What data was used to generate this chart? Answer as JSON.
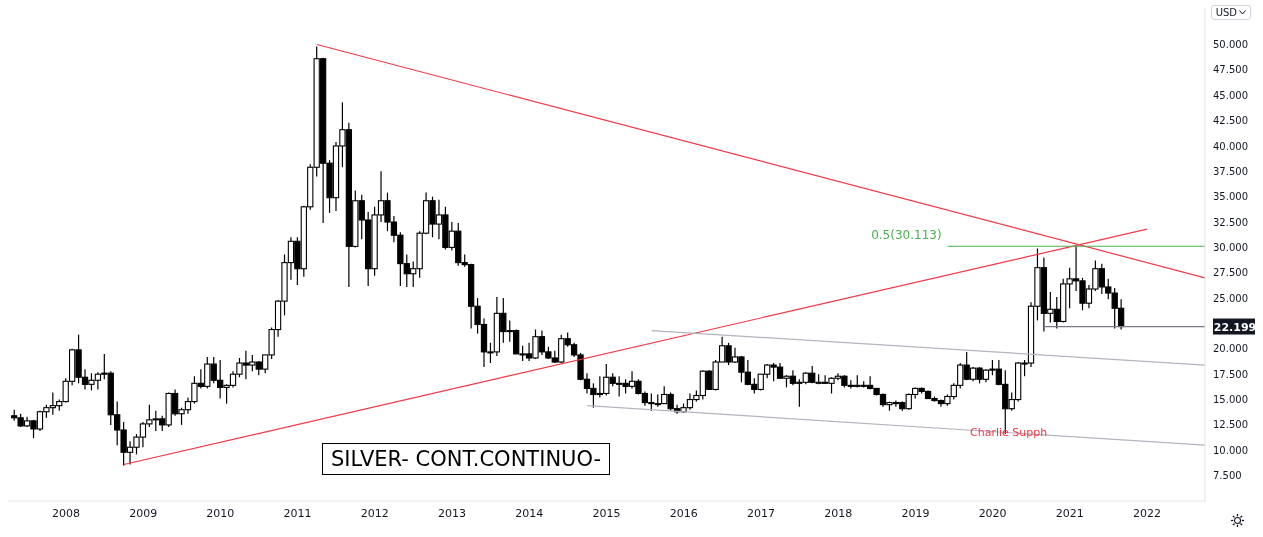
{
  "chart_data": {
    "type": "candlestick",
    "title": "SILVER- CONT.CONTINUO-",
    "xlim": [
      "2007-04",
      "2022-10"
    ],
    "xticks": [
      "2008",
      "2009",
      "2010",
      "2011",
      "2012",
      "2013",
      "2014",
      "2015",
      "2016",
      "2017",
      "2018",
      "2019",
      "2020",
      "2021",
      "2022"
    ],
    "ylim": [
      5.0,
      53.6
    ],
    "yticks": [
      {
        "value": 7.5,
        "label": "7.500"
      },
      {
        "value": 10,
        "label": "10.000"
      },
      {
        "value": 12.5,
        "label": "12.500"
      },
      {
        "value": 15,
        "label": "15.000"
      },
      {
        "value": 17.5,
        "label": "17.500"
      },
      {
        "value": 20,
        "label": "20.000"
      },
      {
        "value": 25,
        "label": "25.000"
      },
      {
        "value": 27.5,
        "label": "27.500"
      },
      {
        "value": 30,
        "label": "30.000"
      },
      {
        "value": 32.5,
        "label": "32.500"
      },
      {
        "value": 35,
        "label": "35.000"
      },
      {
        "value": 37.5,
        "label": "37.500"
      },
      {
        "value": 40,
        "label": "40.000"
      },
      {
        "value": 42.5,
        "label": "42.500"
      },
      {
        "value": 45,
        "label": "45.000"
      },
      {
        "value": 47.5,
        "label": "47.500"
      },
      {
        "value": 50,
        "label": "50.000"
      }
    ],
    "series": [
      {
        "color": "#000000",
        "x": [
          "2007-05",
          "2007-06",
          "2007-07",
          "2007-08",
          "2007-09",
          "2007-10",
          "2007-11",
          "2007-12",
          "2008-01",
          "2008-02",
          "2008-03",
          "2008-04",
          "2008-05",
          "2008-06",
          "2008-07",
          "2008-08",
          "2008-09",
          "2008-10",
          "2008-11",
          "2008-12",
          "2009-01",
          "2009-02",
          "2009-03",
          "2009-04",
          "2009-05",
          "2009-06",
          "2009-07",
          "2009-08",
          "2009-09",
          "2009-10",
          "2009-11",
          "2009-12",
          "2010-01",
          "2010-02",
          "2010-03",
          "2010-04",
          "2010-05",
          "2010-06",
          "2010-07",
          "2010-08",
          "2010-09",
          "2010-10",
          "2010-11",
          "2010-12",
          "2011-01",
          "2011-02",
          "2011-03",
          "2011-04",
          "2011-05",
          "2011-06",
          "2011-07",
          "2011-08",
          "2011-09",
          "2011-10",
          "2011-11",
          "2011-12",
          "2012-01",
          "2012-02",
          "2012-03",
          "2012-04",
          "2012-05",
          "2012-06",
          "2012-07",
          "2012-08",
          "2012-09",
          "2012-10",
          "2012-11",
          "2012-12",
          "2013-01",
          "2013-02",
          "2013-03",
          "2013-04",
          "2013-05",
          "2013-06",
          "2013-07",
          "2013-08",
          "2013-09",
          "2013-10",
          "2013-11",
          "2013-12",
          "2014-01",
          "2014-02",
          "2014-03",
          "2014-04",
          "2014-05",
          "2014-06",
          "2014-07",
          "2014-08",
          "2014-09",
          "2014-10",
          "2014-11",
          "2014-12",
          "2015-01",
          "2015-02",
          "2015-03",
          "2015-04",
          "2015-05",
          "2015-06",
          "2015-07",
          "2015-08",
          "2015-09",
          "2015-10",
          "2015-11",
          "2015-12",
          "2016-01",
          "2016-02",
          "2016-03",
          "2016-04",
          "2016-05",
          "2016-06",
          "2016-07",
          "2016-08",
          "2016-09",
          "2016-10",
          "2016-11",
          "2016-12",
          "2017-01",
          "2017-02",
          "2017-03",
          "2017-04",
          "2017-05",
          "2017-06",
          "2017-07",
          "2017-08",
          "2017-09",
          "2017-10",
          "2017-11",
          "2017-12",
          "2018-01",
          "2018-02",
          "2018-03",
          "2018-04",
          "2018-05",
          "2018-06",
          "2018-07",
          "2018-08",
          "2018-09",
          "2018-10",
          "2018-11",
          "2018-12",
          "2019-01",
          "2019-02",
          "2019-03",
          "2019-04",
          "2019-05",
          "2019-06",
          "2019-07",
          "2019-08",
          "2019-09",
          "2019-10",
          "2019-11",
          "2019-12",
          "2020-01",
          "2020-02",
          "2020-03",
          "2020-04",
          "2020-05",
          "2020-06",
          "2020-07",
          "2020-08",
          "2020-09",
          "2020-10",
          "2020-11",
          "2020-12",
          "2021-01",
          "2021-02",
          "2021-03",
          "2021-04",
          "2021-05",
          "2021-06",
          "2021-07",
          "2021-08",
          "2021-09"
        ],
        "ohlc": [
          [
            13.4,
            14.0,
            12.9,
            13.2
          ],
          [
            13.2,
            13.6,
            12.3,
            12.4
          ],
          [
            12.4,
            13.3,
            12.3,
            12.9
          ],
          [
            12.9,
            13.0,
            11.2,
            12.1
          ],
          [
            12.1,
            13.9,
            11.9,
            13.8
          ],
          [
            13.8,
            14.5,
            13.2,
            14.2
          ],
          [
            14.2,
            15.7,
            13.5,
            14.4
          ],
          [
            14.4,
            15.0,
            13.9,
            14.8
          ],
          [
            14.8,
            17.1,
            14.7,
            16.8
          ],
          [
            16.8,
            20.0,
            16.4,
            19.9
          ],
          [
            19.9,
            21.4,
            16.6,
            17.2
          ],
          [
            17.2,
            18.0,
            16.0,
            16.5
          ],
          [
            16.5,
            17.6,
            15.9,
            16.9
          ],
          [
            16.9,
            17.7,
            16.0,
            17.5
          ],
          [
            17.5,
            19.5,
            17.0,
            17.6
          ],
          [
            17.6,
            17.8,
            12.5,
            13.5
          ],
          [
            13.5,
            14.8,
            10.5,
            12.0
          ],
          [
            12.0,
            12.8,
            8.5,
            9.8
          ],
          [
            9.8,
            10.9,
            8.6,
            10.3
          ],
          [
            10.3,
            11.6,
            9.6,
            11.3
          ],
          [
            11.3,
            12.8,
            10.3,
            12.6
          ],
          [
            12.6,
            14.5,
            12.3,
            13.0
          ],
          [
            13.0,
            13.9,
            11.9,
            13.1
          ],
          [
            13.1,
            13.4,
            11.9,
            12.5
          ],
          [
            12.5,
            15.7,
            12.3,
            15.6
          ],
          [
            15.6,
            16.0,
            13.4,
            13.6
          ],
          [
            13.6,
            14.2,
            12.5,
            14.0
          ],
          [
            14.0,
            15.2,
            13.6,
            14.8
          ],
          [
            14.8,
            17.3,
            14.6,
            16.6
          ],
          [
            16.6,
            18.0,
            16.1,
            16.3
          ],
          [
            16.3,
            19.2,
            16.1,
            18.5
          ],
          [
            18.5,
            19.2,
            16.6,
            16.9
          ],
          [
            16.9,
            18.9,
            15.1,
            16.2
          ],
          [
            16.2,
            16.5,
            14.6,
            16.4
          ],
          [
            16.4,
            17.8,
            16.2,
            17.5
          ],
          [
            17.5,
            19.1,
            17.2,
            18.6
          ],
          [
            18.6,
            19.8,
            17.0,
            18.4
          ],
          [
            18.4,
            19.4,
            17.8,
            18.7
          ],
          [
            18.7,
            18.8,
            17.4,
            18.0
          ],
          [
            18.0,
            19.4,
            17.6,
            19.4
          ],
          [
            19.4,
            22.1,
            19.0,
            21.9
          ],
          [
            21.9,
            24.8,
            21.2,
            24.7
          ],
          [
            24.7,
            29.3,
            23.3,
            28.5
          ],
          [
            28.5,
            31.0,
            26.8,
            30.6
          ],
          [
            30.6,
            31.0,
            26.3,
            27.9
          ],
          [
            27.9,
            34.1,
            27.1,
            34.0
          ],
          [
            34.0,
            38.2,
            33.7,
            37.9
          ],
          [
            37.9,
            49.8,
            37.0,
            48.6
          ],
          [
            48.6,
            48.7,
            32.4,
            38.3
          ],
          [
            38.3,
            38.6,
            33.4,
            34.9
          ],
          [
            34.9,
            40.4,
            33.6,
            40.0
          ],
          [
            40.0,
            44.3,
            37.9,
            41.6
          ],
          [
            41.6,
            42.3,
            26.1,
            30.1
          ],
          [
            30.1,
            35.6,
            30.0,
            34.6
          ],
          [
            34.6,
            35.2,
            30.8,
            32.7
          ],
          [
            32.7,
            33.5,
            26.2,
            27.9
          ],
          [
            27.9,
            34.0,
            27.2,
            33.2
          ],
          [
            33.2,
            37.5,
            32.5,
            34.6
          ],
          [
            34.6,
            35.4,
            31.6,
            32.5
          ],
          [
            32.5,
            33.1,
            30.5,
            31.2
          ],
          [
            31.2,
            31.5,
            26.2,
            28.4
          ],
          [
            28.4,
            29.3,
            26.1,
            27.4
          ],
          [
            27.4,
            28.6,
            26.1,
            27.9
          ],
          [
            27.9,
            31.6,
            27.0,
            31.4
          ],
          [
            31.4,
            35.4,
            31.3,
            34.6
          ],
          [
            34.6,
            35.0,
            31.0,
            32.3
          ],
          [
            32.3,
            34.7,
            30.8,
            33.2
          ],
          [
            33.2,
            34.0,
            29.8,
            30.0
          ],
          [
            30.0,
            32.5,
            29.7,
            31.6
          ],
          [
            31.6,
            32.4,
            28.2,
            28.5
          ],
          [
            28.5,
            29.3,
            28.1,
            28.3
          ],
          [
            28.3,
            28.4,
            22.0,
            24.2
          ],
          [
            24.2,
            25.0,
            21.5,
            22.4
          ],
          [
            22.4,
            23.0,
            18.2,
            19.7
          ],
          [
            19.7,
            20.6,
            18.6,
            19.7
          ],
          [
            19.7,
            25.1,
            19.3,
            23.5
          ],
          [
            23.5,
            25.0,
            20.6,
            21.7
          ],
          [
            21.7,
            22.8,
            20.7,
            21.8
          ],
          [
            21.8,
            21.9,
            19.5,
            19.5
          ],
          [
            19.5,
            20.3,
            18.8,
            19.5
          ],
          [
            19.5,
            20.6,
            18.8,
            19.1
          ],
          [
            19.1,
            21.9,
            19.0,
            21.2
          ],
          [
            21.2,
            21.8,
            19.4,
            19.7
          ],
          [
            19.7,
            20.2,
            19.0,
            19.1
          ],
          [
            19.1,
            19.8,
            18.6,
            18.7
          ],
          [
            18.7,
            21.4,
            18.6,
            21.0
          ],
          [
            21.0,
            21.6,
            20.2,
            20.4
          ],
          [
            20.4,
            20.6,
            19.2,
            19.4
          ],
          [
            19.4,
            19.6,
            16.9,
            17.0
          ],
          [
            17.0,
            17.6,
            15.6,
            16.1
          ],
          [
            16.1,
            16.6,
            14.2,
            15.5
          ],
          [
            15.5,
            17.3,
            15.2,
            15.6
          ],
          [
            15.6,
            18.5,
            15.4,
            17.2
          ],
          [
            17.2,
            17.6,
            16.3,
            16.6
          ],
          [
            16.6,
            17.3,
            15.3,
            16.6
          ],
          [
            16.6,
            17.0,
            15.6,
            16.3
          ],
          [
            16.3,
            17.8,
            16.1,
            16.8
          ],
          [
            16.8,
            17.0,
            15.5,
            15.6
          ],
          [
            15.6,
            15.8,
            14.4,
            14.7
          ],
          [
            14.7,
            15.6,
            13.9,
            14.6
          ],
          [
            14.6,
            15.5,
            14.3,
            14.6
          ],
          [
            14.6,
            16.3,
            14.6,
            15.5
          ],
          [
            15.5,
            15.7,
            13.9,
            14.1
          ],
          [
            14.1,
            14.5,
            13.6,
            13.8
          ],
          [
            13.8,
            14.6,
            13.7,
            14.2
          ],
          [
            14.2,
            15.6,
            14.0,
            15.0
          ],
          [
            15.0,
            15.9,
            14.8,
            15.4
          ],
          [
            15.4,
            17.9,
            15.0,
            17.8
          ],
          [
            17.8,
            17.9,
            16.0,
            16.0
          ],
          [
            16.0,
            18.9,
            15.9,
            18.7
          ],
          [
            18.7,
            21.2,
            18.7,
            20.3
          ],
          [
            20.3,
            20.6,
            18.4,
            18.7
          ],
          [
            18.7,
            20.1,
            18.6,
            19.2
          ],
          [
            19.2,
            19.3,
            16.7,
            17.7
          ],
          [
            17.7,
            18.9,
            16.4,
            16.5
          ],
          [
            16.5,
            17.1,
            15.6,
            16.0
          ],
          [
            16.0,
            17.5,
            15.9,
            17.5
          ],
          [
            17.5,
            18.5,
            17.1,
            18.4
          ],
          [
            18.4,
            18.6,
            16.8,
            18.2
          ],
          [
            18.2,
            18.6,
            17.1,
            17.1
          ],
          [
            17.1,
            17.4,
            16.2,
            17.3
          ],
          [
            17.3,
            17.9,
            16.4,
            16.6
          ],
          [
            16.6,
            17.0,
            14.3,
            16.7
          ],
          [
            16.7,
            17.7,
            16.5,
            17.6
          ],
          [
            17.6,
            18.3,
            16.6,
            16.7
          ],
          [
            16.7,
            17.5,
            16.5,
            16.7
          ],
          [
            16.7,
            17.4,
            16.6,
            16.6
          ],
          [
            16.6,
            17.2,
            15.6,
            17.1
          ],
          [
            17.1,
            17.6,
            16.9,
            17.3
          ],
          [
            17.3,
            17.4,
            16.2,
            16.4
          ],
          [
            16.4,
            16.9,
            16.1,
            16.3
          ],
          [
            16.3,
            17.4,
            16.2,
            16.4
          ],
          [
            16.4,
            16.8,
            16.2,
            16.4
          ],
          [
            16.4,
            17.3,
            16.0,
            16.1
          ],
          [
            16.1,
            16.1,
            15.4,
            15.5
          ],
          [
            15.5,
            15.6,
            14.3,
            14.5
          ],
          [
            14.5,
            14.8,
            13.9,
            14.7
          ],
          [
            14.7,
            14.9,
            14.3,
            14.7
          ],
          [
            14.7,
            14.8,
            13.9,
            14.1
          ],
          [
            14.1,
            15.6,
            14.0,
            15.5
          ],
          [
            15.5,
            16.2,
            15.1,
            16.1
          ],
          [
            16.1,
            16.2,
            15.6,
            15.8
          ],
          [
            15.8,
            15.9,
            15.1,
            15.1
          ],
          [
            15.1,
            15.3,
            14.8,
            14.9
          ],
          [
            14.9,
            15.0,
            14.3,
            14.6
          ],
          [
            14.6,
            15.5,
            14.4,
            15.3
          ],
          [
            15.3,
            16.6,
            15.0,
            16.4
          ],
          [
            16.4,
            18.6,
            16.1,
            18.4
          ],
          [
            18.4,
            19.7,
            16.9,
            17.0
          ],
          [
            17.0,
            18.2,
            16.8,
            18.1
          ],
          [
            18.1,
            18.2,
            16.6,
            17.0
          ],
          [
            17.0,
            18.0,
            16.7,
            17.9
          ],
          [
            17.9,
            18.9,
            17.4,
            18.0
          ],
          [
            18.0,
            18.9,
            16.4,
            16.5
          ],
          [
            16.5,
            17.9,
            11.6,
            14.1
          ],
          [
            14.1,
            15.7,
            13.9,
            15.0
          ],
          [
            15.0,
            18.7,
            14.8,
            18.6
          ],
          [
            18.6,
            18.9,
            17.3,
            18.6
          ],
          [
            18.6,
            24.6,
            18.2,
            24.2
          ],
          [
            24.2,
            29.9,
            22.8,
            28.0
          ],
          [
            28.0,
            29.0,
            21.7,
            23.5
          ],
          [
            23.5,
            25.6,
            22.6,
            23.9
          ],
          [
            23.9,
            25.1,
            22.0,
            22.7
          ],
          [
            22.7,
            26.9,
            22.6,
            26.4
          ],
          [
            26.4,
            28.0,
            24.0,
            26.9
          ],
          [
            26.9,
            30.1,
            25.7,
            26.7
          ],
          [
            26.7,
            27.0,
            23.8,
            24.5
          ],
          [
            24.5,
            26.3,
            24.0,
            25.9
          ],
          [
            25.9,
            28.7,
            25.7,
            27.9
          ],
          [
            27.9,
            28.4,
            25.4,
            26.1
          ],
          [
            26.1,
            26.9,
            24.9,
            25.5
          ],
          [
            25.5,
            26.0,
            22.0,
            24.0
          ],
          [
            24.0,
            24.9,
            21.9,
            22.199
          ]
        ]
      },
      {
        "type": "line",
        "color": "#f23645",
        "x": [
          "2008-10",
          "2022-01"
        ],
        "values": [
          8.6,
          31.8
        ]
      },
      {
        "type": "line",
        "color": "#f23645",
        "x": [
          "2011-04",
          "2022-10"
        ],
        "values": [
          50.0,
          27.0
        ]
      },
      {
        "type": "line",
        "color": "#b2b5be",
        "x": [
          "2015-08",
          "2022-10"
        ],
        "values": [
          21.8,
          18.4
        ]
      },
      {
        "type": "line",
        "color": "#b2b5be",
        "x": [
          "2014-10",
          "2022-10"
        ],
        "values": [
          14.4,
          10.5
        ]
      },
      {
        "type": "line",
        "color": "#4caf50",
        "x": [
          "2019-06",
          "2022-10"
        ],
        "values": [
          30.113,
          30.113
        ]
      },
      {
        "type": "line",
        "color": "#787b86",
        "x": [
          "2020-09",
          "2022-10"
        ],
        "values": [
          22.199,
          22.199
        ]
      }
    ],
    "annotations": [
      {
        "text": "0.5(30.113)",
        "x": "2019-06",
        "y": 30.113
      },
      {
        "text": "22.199",
        "x": "2022-10",
        "y": 22.199
      },
      "Charlie Supph",
      "USD"
    ]
  }
}
